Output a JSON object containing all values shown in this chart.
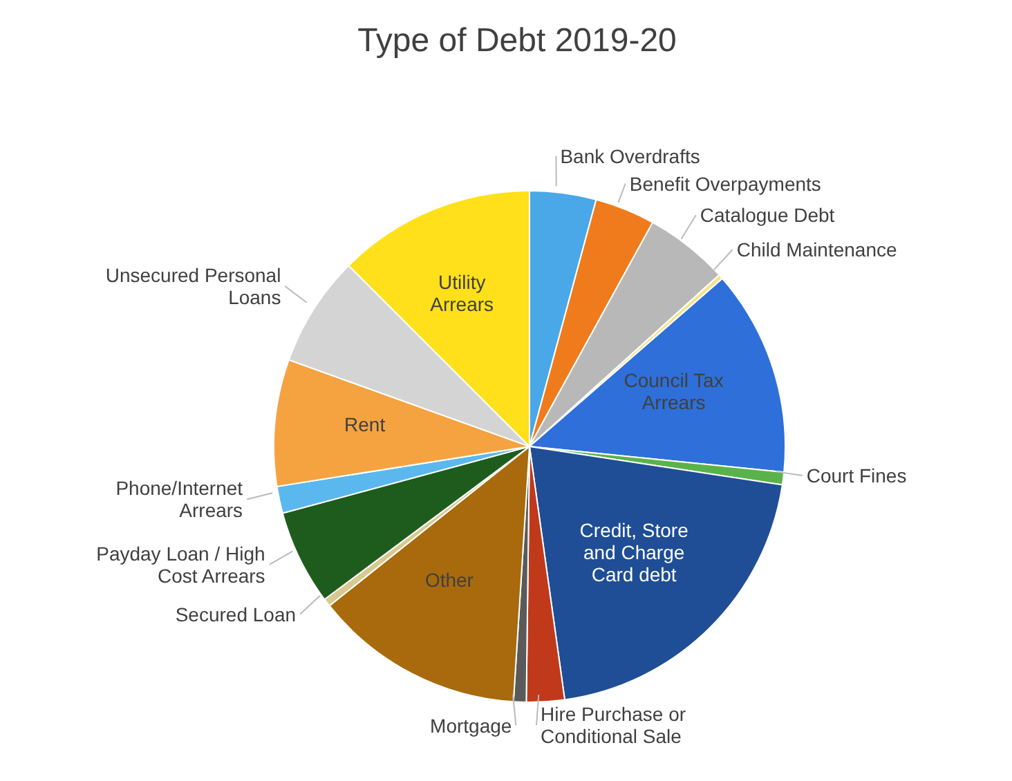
{
  "chart_data": {
    "type": "pie",
    "title": "Type of Debt 2019-20",
    "categories": [
      "Bank Overdrafts",
      "Benefit Overpayments",
      "Catalogue Debt",
      "Child Maintenance",
      "Council Tax Arrears",
      "Court Fines",
      "Credit, Store and Charge Card debt",
      "Hire Purchase or Conditional Sale",
      "Mortgage",
      "Other",
      "Secured Loan",
      "Payday Loan / High Cost Arrears",
      "Phone/Internet Arrears",
      "Rent",
      "Unsecured Personal Loans",
      "Utility Arrears"
    ],
    "values": [
      4.2,
      3.8,
      5.3,
      0.3,
      13,
      0.8,
      20.4,
      2.4,
      0.8,
      13.3,
      0.5,
      6,
      1.7,
      8,
      7,
      12.5
    ],
    "colors": [
      "#4aa8e8",
      "#f07b1c",
      "#b8b8b8",
      "#f2e58c",
      "#2e6fd9",
      "#5ab34a",
      "#1f4e96",
      "#c0391b",
      "#5a5a5a",
      "#a86a0c",
      "#d9c890",
      "#1e5c1e",
      "#5bb8ee",
      "#f5a340",
      "#d4d4d4",
      "#ffe01a"
    ]
  }
}
